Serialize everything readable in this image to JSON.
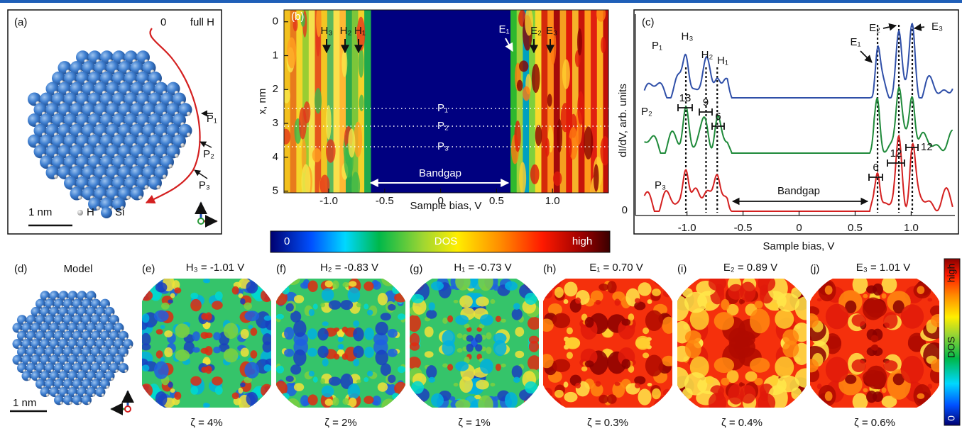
{
  "panel_a": {
    "label": "(a)",
    "zero": "0",
    "full_h": "full H",
    "p1": "P₁",
    "p2": "P₂",
    "p3": "P₃",
    "scale": "1 nm",
    "h": "H",
    "si": "Si"
  },
  "panel_b": {
    "label": "(b)",
    "y_label": "x, nm",
    "x_label": "Sample bias, V",
    "xlim": [
      -1.4,
      1.5
    ],
    "ylim": [
      -0.35,
      5.05
    ],
    "xticks": [
      {
        "value": -1,
        "label": "-1.0"
      },
      {
        "value": -0.5,
        "label": "-0.5"
      },
      0,
      {
        "value": 0.5,
        "label": "0.5"
      },
      {
        "value": 1,
        "label": "1.0"
      }
    ],
    "yticks": [
      0,
      1,
      2,
      3,
      4,
      5
    ],
    "peaks": [
      "H₃",
      "H₂",
      "H₁",
      "E₁",
      "E₂",
      "E₃"
    ],
    "paths": [
      "P₁",
      "P₂",
      "P₃"
    ],
    "bandgap": "Bandgap"
  },
  "colorbar": {
    "low": "0",
    "mid": "DOS",
    "high": "high"
  },
  "panel_c": {
    "label": "(c)",
    "y_label": "dI/dV, arb. units",
    "y_zero": "0",
    "x_label": "Sample bias, V",
    "xlim": [
      -1.46,
      1.39
    ],
    "xticks": [
      {
        "value": -1,
        "label": "-1.0"
      },
      {
        "value": -0.5,
        "label": "-0.5"
      },
      0,
      {
        "value": 0.5,
        "label": "0.5"
      },
      {
        "value": 1,
        "label": "1.0"
      }
    ],
    "curves": [
      "P₁",
      "P₂",
      "P₃"
    ],
    "peaks": [
      "H₃",
      "H₂",
      "H₁",
      "E₁",
      "E₂",
      "E₃"
    ],
    "widths": [
      13,
      9,
      6,
      6,
      12,
      12
    ],
    "bandgap": "Bandgap"
  },
  "panel_d": {
    "label": "(d)",
    "title": "Model",
    "scale": "1 nm"
  },
  "maps": [
    {
      "label": "(e)",
      "title": "H₃ = -1.01 V",
      "zeta": "ζ = 4%"
    },
    {
      "label": "(f)",
      "title": "H₂ = -0.83 V",
      "zeta": "ζ = 2%"
    },
    {
      "label": "(g)",
      "title": "H₁ = -0.73 V",
      "zeta": "ζ = 1%"
    },
    {
      "label": "(h)",
      "title": "E₁ = 0.70 V",
      "zeta": "ζ = 0.3%"
    },
    {
      "label": "(i)",
      "title": "E₂ = 0.89 V",
      "zeta": "ζ = 0.4%"
    },
    {
      "label": "(j)",
      "title": "E₃ = 1.01 V",
      "zeta": "ζ = 0.6%"
    }
  ],
  "colorbar_v": {
    "high": "high",
    "mid": "DOS",
    "low": "0"
  }
}
